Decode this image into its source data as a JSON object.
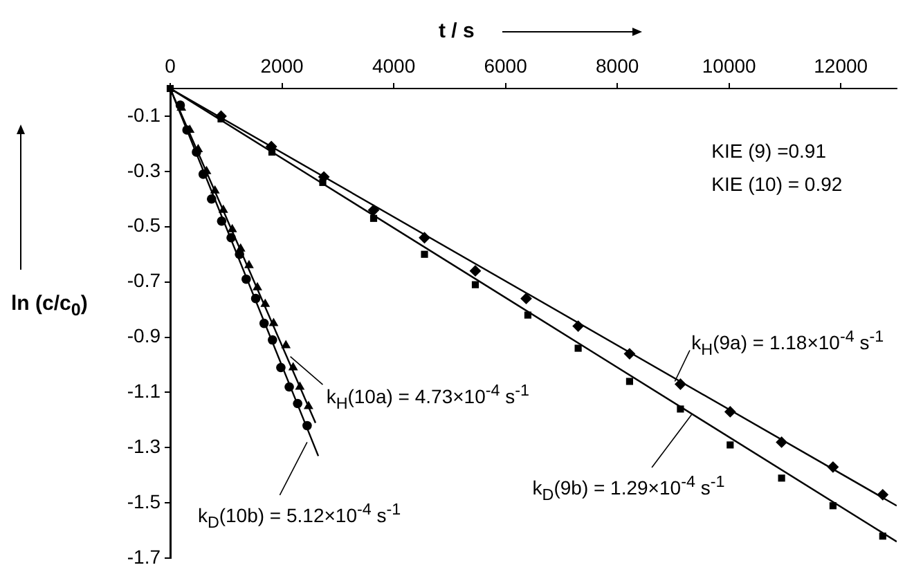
{
  "chart_data": {
    "type": "scatter",
    "xlabel": "t / s",
    "ylabel": "ln (c/c$_{0}$)",
    "xlim": [
      0,
      13000
    ],
    "xticks": [
      0,
      2000,
      4000,
      6000,
      8000,
      10000,
      12000
    ],
    "ylim": [
      -1.7,
      0
    ],
    "yticks": [
      -0.1,
      -0.3,
      -0.5,
      -0.7,
      -0.9,
      -1.1,
      -1.3,
      -1.5,
      -1.7
    ],
    "grid": false,
    "legend": false,
    "series": [
      {
        "type": "scatter",
        "marker": "diamond",
        "color": "#000000",
        "x": [
          910,
          1810,
          2750,
          3640,
          4550,
          5460,
          6370,
          7300,
          8220,
          9130,
          10020,
          10940,
          11860,
          12750
        ],
        "values": [
          -0.1,
          -0.21,
          -0.32,
          -0.44,
          -0.54,
          -0.66,
          -0.76,
          -0.86,
          -0.96,
          -1.07,
          -1.17,
          -1.28,
          -1.37,
          -1.47
        ]
      },
      {
        "type": "scatter",
        "marker": "square",
        "color": "#000000",
        "x": [
          0,
          910,
          1820,
          2730,
          3640,
          4550,
          5460,
          6400,
          7300,
          8220,
          9130,
          10020,
          10940,
          11860,
          12750
        ],
        "values": [
          0,
          -0.11,
          -0.23,
          -0.34,
          -0.47,
          -0.6,
          -0.71,
          -0.82,
          -0.94,
          -1.06,
          -1.16,
          -1.29,
          -1.41,
          -1.51,
          -1.62
        ]
      },
      {
        "type": "scatter",
        "marker": "triangle",
        "color": "#000000",
        "x": [
          200,
          350,
          500,
          650,
          800,
          950,
          1110,
          1260,
          1410,
          1560,
          1700,
          1850,
          2070,
          2200,
          2320,
          2475
        ],
        "values": [
          -0.07,
          -0.15,
          -0.22,
          -0.3,
          -0.37,
          -0.44,
          -0.51,
          -0.58,
          -0.64,
          -0.72,
          -0.78,
          -0.85,
          -0.93,
          -1.01,
          -1.08,
          -1.15
        ]
      },
      {
        "type": "scatter",
        "marker": "circle",
        "color": "#000000",
        "x": [
          180,
          300,
          470,
          590,
          740,
          920,
          1090,
          1240,
          1360,
          1530,
          1680,
          1830,
          1980,
          2130,
          2280,
          2450
        ],
        "values": [
          -0.06,
          -0.15,
          -0.23,
          -0.31,
          -0.4,
          -0.48,
          -0.54,
          -0.6,
          -0.69,
          -0.76,
          -0.85,
          -0.91,
          -1.01,
          -1.08,
          -1.14,
          -1.22
        ]
      },
      {
        "type": "line",
        "marker": "none",
        "line_style": "solid",
        "color": "#000000",
        "x": [
          0,
          13000
        ],
        "values": [
          0,
          -1.51
        ]
      },
      {
        "type": "line",
        "marker": "none",
        "line_style": "solid",
        "color": "#000000",
        "x": [
          0,
          13000
        ],
        "values": [
          0,
          -1.64
        ]
      },
      {
        "type": "line",
        "marker": "none",
        "line_style": "solid",
        "color": "#000000",
        "x": [
          0,
          2600
        ],
        "values": [
          0,
          -1.21
        ]
      },
      {
        "type": "line",
        "marker": "none",
        "line_style": "solid",
        "color": "#000000",
        "x": [
          0,
          2650
        ],
        "values": [
          0,
          -1.33
        ]
      }
    ],
    "annotations": [
      {
        "text": "k$_{H}$(9a) = 1.18×10$^{-4}$ s$^{-1}$",
        "x": 9030,
        "y": -1.06
      },
      {
        "text": "k$_{D}$(9b) = 1.29×10$^{-4}$ s$^{-1}$",
        "x": 9330,
        "y": -1.18
      },
      {
        "text": "k$_{H}$(10a) = 4.73×10$^{-4}$ s$^{-1}$",
        "x": 2150,
        "y": -0.97
      },
      {
        "text": "k$_{D}$(10b) = 5.12×10$^{-4}$ s$^{-1}$",
        "x": 2450,
        "y": -1.28
      },
      "KIE (9)   =0.91",
      "KIE (10) = 0.92"
    ]
  }
}
